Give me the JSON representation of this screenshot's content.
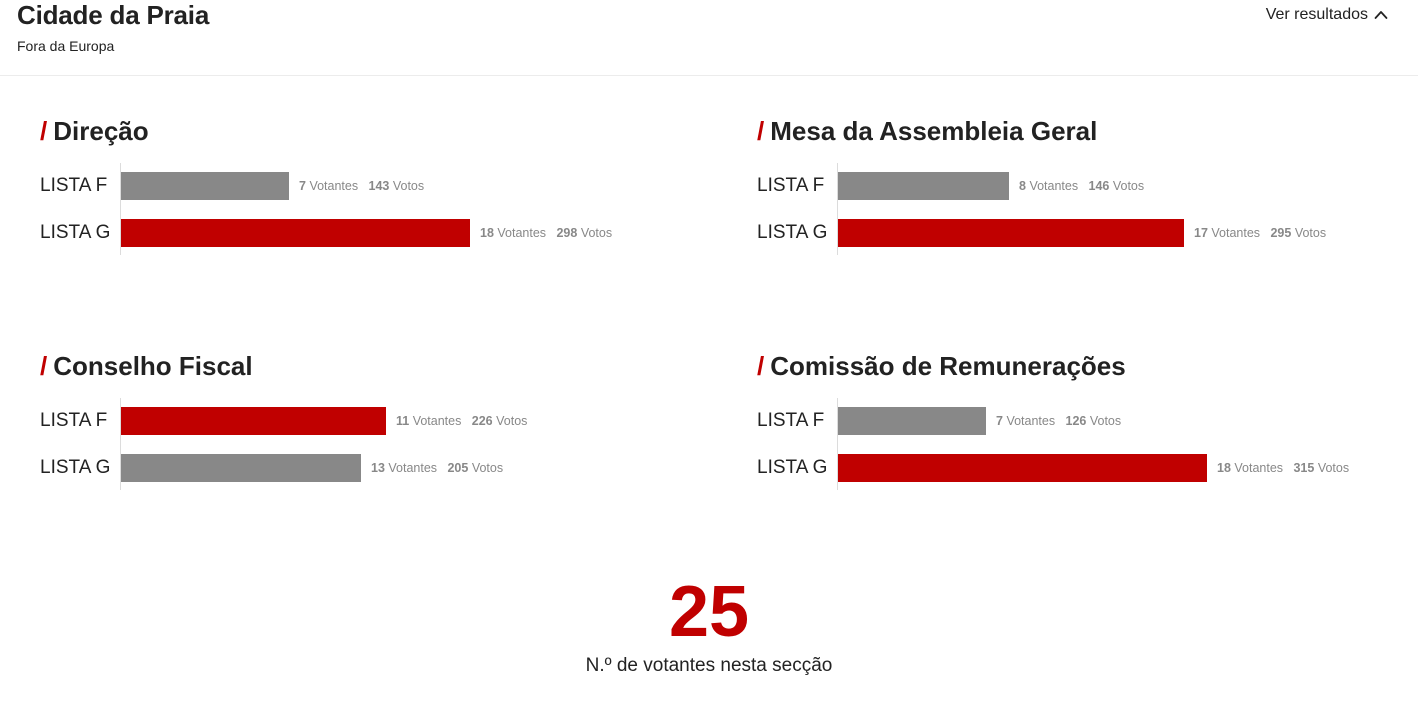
{
  "header": {
    "title": "Cidade da Praia",
    "subtitle": "Fora da Europa",
    "toggle_label": "Ver resultados",
    "toggle_icon": "chevron-up-icon"
  },
  "colors": {
    "winner": "#c00000",
    "other": "#888888",
    "accent": "#c00000"
  },
  "sections": [
    {
      "slash": "/",
      "title": "Direção",
      "max_votes": 315,
      "rows": [
        {
          "label": "LISTA F",
          "votantes": "7",
          "votantes_label": "Votantes",
          "votos": "143",
          "votos_label": "Votos",
          "votos_value": 143,
          "winner": false
        },
        {
          "label": "LISTA G",
          "votantes": "18",
          "votantes_label": "Votantes",
          "votos": "298",
          "votos_label": "Votos",
          "votos_value": 298,
          "winner": true
        }
      ]
    },
    {
      "slash": "/",
      "title": "Mesa da Assembleia Geral",
      "max_votes": 315,
      "rows": [
        {
          "label": "LISTA F",
          "votantes": "8",
          "votantes_label": "Votantes",
          "votos": "146",
          "votos_label": "Votos",
          "votos_value": 146,
          "winner": false
        },
        {
          "label": "LISTA G",
          "votantes": "17",
          "votantes_label": "Votantes",
          "votos": "295",
          "votos_label": "Votos",
          "votos_value": 295,
          "winner": true
        }
      ]
    },
    {
      "slash": "/",
      "title": "Conselho Fiscal",
      "max_votes": 315,
      "rows": [
        {
          "label": "LISTA F",
          "votantes": "11",
          "votantes_label": "Votantes",
          "votos": "226",
          "votos_label": "Votos",
          "votos_value": 226,
          "winner": true
        },
        {
          "label": "LISTA G",
          "votantes": "13",
          "votantes_label": "Votantes",
          "votos": "205",
          "votos_label": "Votos",
          "votos_value": 205,
          "winner": false
        }
      ]
    },
    {
      "slash": "/",
      "title": "Comissão de Remunerações",
      "max_votes": 315,
      "rows": [
        {
          "label": "LISTA F",
          "votantes": "7",
          "votantes_label": "Votantes",
          "votos": "126",
          "votos_label": "Votos",
          "votos_value": 126,
          "winner": false
        },
        {
          "label": "LISTA G",
          "votantes": "18",
          "votantes_label": "Votantes",
          "votos": "315",
          "votos_label": "Votos",
          "votos_value": 315,
          "winner": true
        }
      ]
    }
  ],
  "total": {
    "number": "25",
    "label": "N.º de votantes nesta secção"
  }
}
